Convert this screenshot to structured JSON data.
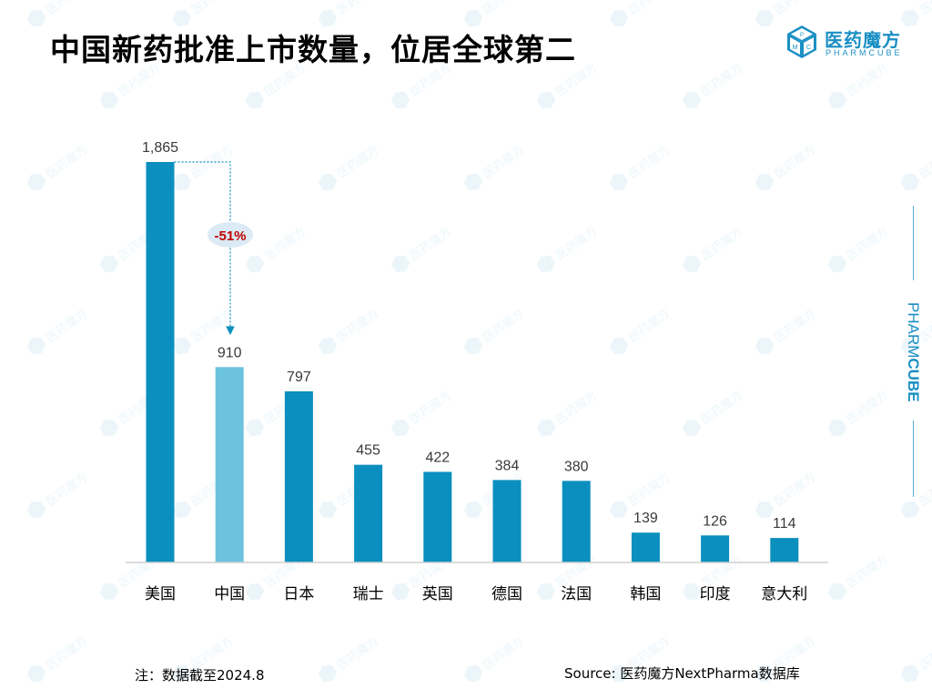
{
  "title": "中国新药批准上市数量，位居全球第二",
  "logo": {
    "cn": "医药魔方",
    "en": "PHARMCUBE",
    "cube_letters": [
      "P",
      "M",
      "C"
    ]
  },
  "side_brand": {
    "part1": "PHARM",
    "part2": "CUBE"
  },
  "colors": {
    "bar_primary": "#0a8fbf",
    "bar_highlight": "#6cc3de",
    "callout_text": "#c00000",
    "callout_bg": "#dbeaf4",
    "arrow": "#0a8fbf",
    "brand": "#1a8fc4"
  },
  "chart_data": {
    "type": "bar",
    "title": "中国新药批准上市数量，位居全球第二",
    "categories": [
      "美国",
      "中国",
      "日本",
      "瑞士",
      "英国",
      "德国",
      "法国",
      "韩国",
      "印度",
      "意大利"
    ],
    "values": [
      1865,
      910,
      797,
      455,
      422,
      384,
      380,
      139,
      126,
      114
    ],
    "value_labels": [
      "1,865",
      "910",
      "797",
      "455",
      "422",
      "384",
      "380",
      "139",
      "126",
      "114"
    ],
    "highlight_index": 1,
    "ylim": [
      0,
      1865
    ],
    "xlabel": "",
    "ylabel": "",
    "grid": false,
    "annotation": {
      "text": "-51%",
      "from_index": 0,
      "to_index": 1
    }
  },
  "footer": {
    "note": "注：数据截至2024.8",
    "source": "Source: 医药魔方NextPharma数据库"
  }
}
